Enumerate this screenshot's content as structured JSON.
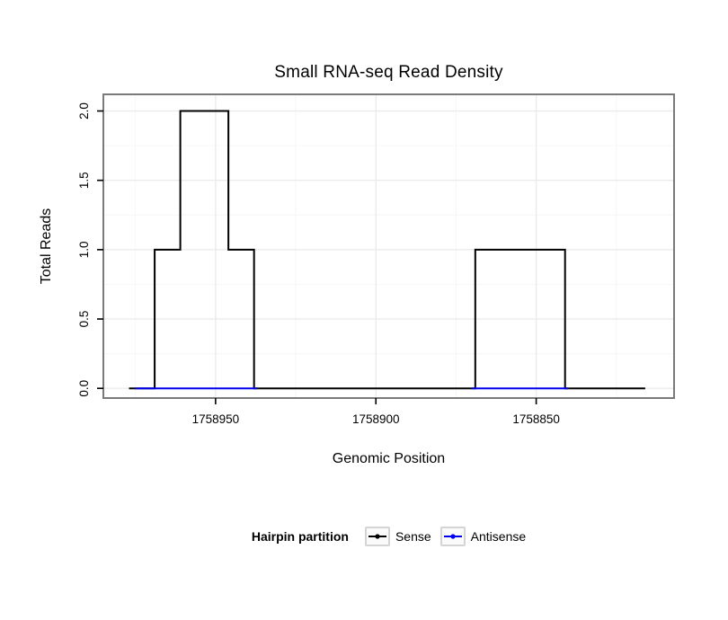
{
  "title": "Small RNA-seq Read Density",
  "axes": {
    "x_label": "Genomic Position",
    "y_label": "Total Reads"
  },
  "legend": {
    "title": "Hairpin partition",
    "items": [
      {
        "name": "Sense",
        "label": "Sense",
        "color": "#000000"
      },
      {
        "name": "Antisense",
        "label": "Antisense",
        "color": "#0000ee"
      }
    ]
  },
  "chart_data": {
    "type": "line",
    "title": "Small RNA-seq Read Density",
    "xlabel": "Genomic Position",
    "ylabel": "Total Reads",
    "x_reversed": true,
    "xlim": [
      1758985,
      1758807
    ],
    "ylim": [
      -0.07,
      2.12
    ],
    "grid": true,
    "legend_position": "bottom",
    "panel_border_color": "#7a7a7a",
    "grid_major_color": "#ebebeb",
    "grid_minor_color": "#f6f6f6",
    "tick_color": "#000000",
    "x_ticks": [
      {
        "value": 1758950,
        "label": "1758950"
      },
      {
        "value": 1758900,
        "label": "1758900"
      },
      {
        "value": 1758850,
        "label": "1758850"
      }
    ],
    "y_ticks": [
      {
        "value": 0.0,
        "label": "0.0"
      },
      {
        "value": 0.5,
        "label": "0.5"
      },
      {
        "value": 1.0,
        "label": "1.0"
      },
      {
        "value": 1.5,
        "label": "1.5"
      },
      {
        "value": 2.0,
        "label": "2.0"
      }
    ],
    "x_minor_ticks": [
      1758975,
      1758925,
      1758875,
      1758825
    ],
    "y_minor_ticks": [
      0.25,
      0.75,
      1.25,
      1.75
    ],
    "series": [
      {
        "name": "Sense",
        "color": "#000000",
        "paths": [
          [
            [
              1758977,
              0
            ],
            [
              1758969,
              0
            ],
            [
              1758969,
              1
            ],
            [
              1758961,
              1
            ],
            [
              1758961,
              2
            ],
            [
              1758946,
              2
            ],
            [
              1758946,
              1
            ],
            [
              1758938,
              1
            ],
            [
              1758938,
              0
            ],
            [
              1758869,
              0
            ],
            [
              1758869,
              1
            ],
            [
              1758841,
              1
            ],
            [
              1758841,
              0
            ],
            [
              1758816,
              0
            ]
          ]
        ]
      },
      {
        "name": "Antisense",
        "color": "#0000ee",
        "paths": [
          [
            [
              1758975,
              0
            ],
            [
              1758937,
              0
            ]
          ],
          [
            [
              1758870,
              0
            ],
            [
              1758840,
              0
            ]
          ]
        ]
      }
    ]
  }
}
